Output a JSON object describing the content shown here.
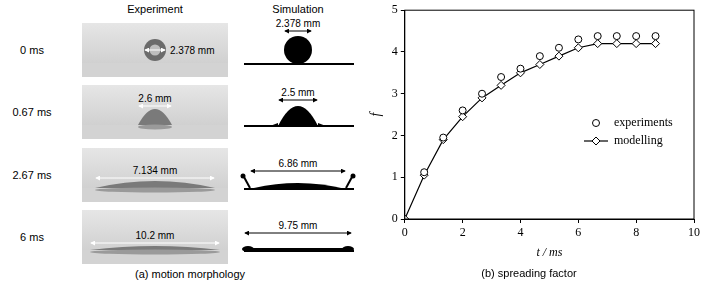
{
  "panel_a": {
    "headers": [
      "Experiment",
      "Simulation"
    ],
    "rows": [
      {
        "time": "0 ms",
        "experiment": "2.378 mm",
        "simulation": "2.378 mm"
      },
      {
        "time": "0.67 ms",
        "experiment": "2.6 mm",
        "simulation": "2.5 mm"
      },
      {
        "time": "2.67 ms",
        "experiment": "7.134 mm",
        "simulation": "6.86 mm"
      },
      {
        "time": "6 ms",
        "experiment": "10.2 mm",
        "simulation": "9.75 mm"
      }
    ],
    "caption": "(a) motion morphology"
  },
  "chart_data": {
    "type": "scatter",
    "title": "(b) spreading factor",
    "x_label": "t / ms",
    "y_label": "f",
    "xlim": [
      0,
      10
    ],
    "xticks": [
      0,
      2,
      4,
      6,
      8,
      10
    ],
    "ylim": [
      0,
      5
    ],
    "yticks": [
      0,
      1,
      2,
      3,
      4,
      5
    ],
    "grid": false,
    "legend": "lower right",
    "series": [
      {
        "name": "experiments",
        "color": "#000000",
        "marker": "circle",
        "line_style": "none",
        "x": [
          0.67,
          1.33,
          2.0,
          2.67,
          3.33,
          4.0,
          4.67,
          5.33,
          6.0,
          6.67,
          7.33,
          8.0,
          8.67
        ],
        "values": [
          1.12,
          1.95,
          2.6,
          3.0,
          3.4,
          3.6,
          3.9,
          4.1,
          4.3,
          4.38,
          4.38,
          4.38,
          4.38
        ]
      },
      {
        "name": "modelling",
        "color": "#000000",
        "marker": "diamond",
        "line_style": "solid",
        "x": [
          0,
          0.67,
          1.33,
          2.0,
          2.67,
          3.33,
          4.0,
          4.67,
          5.33,
          6.0,
          6.67,
          7.33,
          8.0,
          8.67
        ],
        "values": [
          0,
          1.05,
          1.9,
          2.45,
          2.9,
          3.2,
          3.5,
          3.7,
          3.9,
          4.1,
          4.2,
          4.2,
          4.2,
          4.2
        ]
      }
    ]
  }
}
